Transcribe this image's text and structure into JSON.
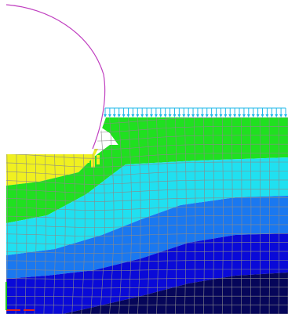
{
  "view": {
    "background": "#ffffff"
  },
  "colors": {
    "indenter_outline": "#c040c0",
    "load_arrows": "#20b8e8",
    "mesh_lines": "#8a8a8a",
    "contour_bands": [
      "#f0f020",
      "#20e020",
      "#20e0f0",
      "#1a78f0",
      "#0a0ad8",
      "#06065a"
    ],
    "triad_x_axis": "#e02020",
    "triad_y_axis": "#20c020"
  },
  "indenter": {
    "shape": "circular-arc"
  },
  "load": {
    "kind": "distributed-pressure"
  },
  "mesh": {
    "element_type": "quadrilateral"
  },
  "triad": {
    "axes": [
      "x",
      "y"
    ]
  }
}
